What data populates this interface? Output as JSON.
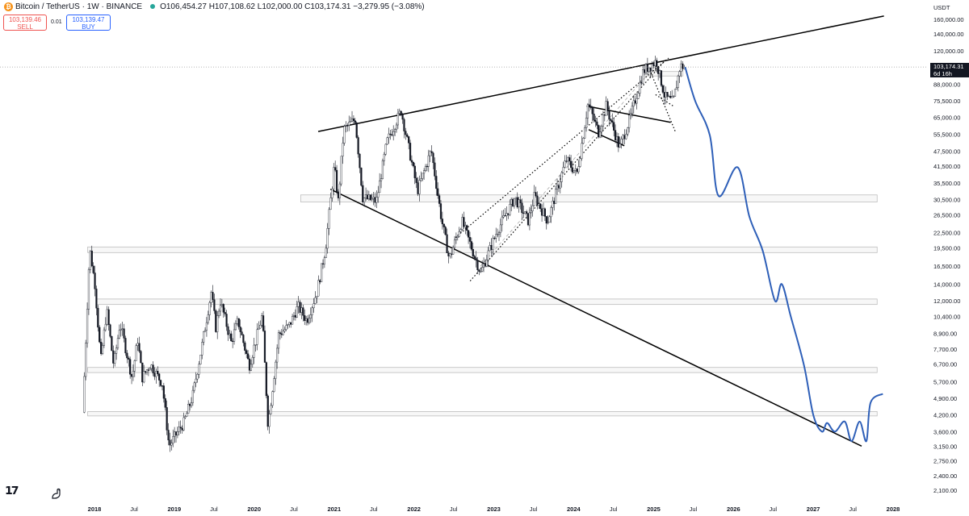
{
  "header": {
    "symbol": "Bitcoin / TetherUS · 1W · BINANCE",
    "open": "O106,454.27",
    "high": "H107,108.62",
    "low": "L102,000.00",
    "close": "C103,174.31",
    "change": "−3,279.95 (−3.08%)"
  },
  "trade": {
    "sell_price": "103,139.46",
    "sell_label": "SELL",
    "spread": "0.01",
    "buy_price": "103,139.47",
    "buy_label": "BUY"
  },
  "price_axis": {
    "currency": "USDT",
    "current_price": "103,174.31",
    "countdown": "6d 16h"
  },
  "colors": {
    "up_candle": "#ffffff",
    "down_candle": "#131722",
    "projection": "#2e5fb8",
    "trendline": "#000000",
    "zone_border": "#bdbdbd"
  },
  "chart_data": {
    "type": "candlestick",
    "title": "Bitcoin / TetherUS · 1W · BINANCE",
    "y_scale": "log",
    "ylim": [
      2000,
      175000
    ],
    "y_ticks": [
      160000,
      140000,
      120000,
      88000,
      75500,
      65000,
      55500,
      47500,
      41500,
      35500,
      30500,
      26500,
      22500,
      19500,
      16500,
      14000,
      12000,
      10400,
      8900,
      7700,
      6700,
      5700,
      4900,
      4200,
      3600,
      3150,
      2750,
      2400,
      2100
    ],
    "y_tick_labels": [
      "160,000.00",
      "140,000.00",
      "120,000.00",
      "88,000.00",
      "75,500.00",
      "65,000.00",
      "55,500.00",
      "47,500.00",
      "41,500.00",
      "35,500.00",
      "30,500.00",
      "26,500.00",
      "22,500.00",
      "19,500.00",
      "16,500.00",
      "14,000.00",
      "12,000.00",
      "10,400.00",
      "8,900.00",
      "7,700.00",
      "6,700.00",
      "5,700.00",
      "4,900.00",
      "4,200.00",
      "3,600.00",
      "3,150.00",
      "2,750.00",
      "2,400.00",
      "2,100.00"
    ],
    "x_ticks": [
      "2018",
      "Jul",
      "2019",
      "Jul",
      "2020",
      "Jul",
      "2021",
      "Jul",
      "2022",
      "Jul",
      "2023",
      "Jul",
      "2024",
      "Jul",
      "2025",
      "Jul",
      "2026",
      "Jul",
      "2027",
      "Jul",
      "2028"
    ],
    "x_tick_dates": [
      "2018-01-01",
      "2018-07-01",
      "2019-01-01",
      "2019-07-01",
      "2020-01-01",
      "2020-07-01",
      "2021-01-01",
      "2021-07-01",
      "2022-01-01",
      "2022-07-01",
      "2023-01-01",
      "2023-07-01",
      "2024-01-01",
      "2024-07-01",
      "2025-01-01",
      "2025-07-01",
      "2026-01-01",
      "2026-07-01",
      "2027-01-01",
      "2027-07-01",
      "2028-01-01"
    ],
    "price_path": [
      [
        "2017-11-15",
        4300
      ],
      [
        "2017-12-17",
        19500
      ],
      [
        "2018-01-10",
        14000
      ],
      [
        "2018-02-06",
        6900
      ],
      [
        "2018-03-05",
        11000
      ],
      [
        "2018-04-06",
        6600
      ],
      [
        "2018-05-05",
        9800
      ],
      [
        "2018-06-29",
        5900
      ],
      [
        "2018-07-25",
        8400
      ],
      [
        "2018-08-14",
        5900
      ],
      [
        "2018-09-20",
        6700
      ],
      [
        "2018-11-14",
        5600
      ],
      [
        "2018-12-15",
        3150
      ],
      [
        "2019-01-20",
        3550
      ],
      [
        "2019-02-20",
        3900
      ],
      [
        "2019-04-02",
        5000
      ],
      [
        "2019-05-15",
        8000
      ],
      [
        "2019-06-26",
        13000
      ],
      [
        "2019-07-17",
        9400
      ],
      [
        "2019-08-06",
        12000
      ],
      [
        "2019-09-25",
        8200
      ],
      [
        "2019-10-26",
        10000
      ],
      [
        "2019-12-17",
        6600
      ],
      [
        "2020-02-14",
        10500
      ],
      [
        "2020-03-12",
        3800
      ],
      [
        "2020-04-29",
        8800
      ],
      [
        "2020-06-15",
        9500
      ],
      [
        "2020-07-27",
        11400
      ],
      [
        "2020-09-05",
        10000
      ],
      [
        "2020-10-21",
        13000
      ],
      [
        "2020-11-30",
        19500
      ],
      [
        "2021-01-08",
        41500
      ],
      [
        "2021-01-27",
        30000
      ],
      [
        "2021-02-21",
        58000
      ],
      [
        "2021-04-14",
        64000
      ],
      [
        "2021-05-19",
        31000
      ],
      [
        "2021-07-20",
        30000
      ],
      [
        "2021-09-07",
        52000
      ],
      [
        "2021-11-10",
        69000
      ],
      [
        "2022-01-24",
        33000
      ],
      [
        "2022-03-28",
        48000
      ],
      [
        "2022-05-12",
        26000
      ],
      [
        "2022-06-18",
        17600
      ],
      [
        "2022-08-15",
        25000
      ],
      [
        "2022-11-09",
        15500
      ],
      [
        "2023-01-20",
        22500
      ],
      [
        "2023-04-14",
        31000
      ],
      [
        "2023-06-15",
        25000
      ],
      [
        "2023-07-13",
        31500
      ],
      [
        "2023-09-11",
        25000
      ],
      [
        "2023-12-05",
        44000
      ],
      [
        "2024-01-23",
        38500
      ],
      [
        "2024-03-14",
        73800
      ],
      [
        "2024-05-01",
        56500
      ],
      [
        "2024-06-05",
        72000
      ],
      [
        "2024-08-05",
        49000
      ],
      [
        "2024-09-27",
        66500
      ],
      [
        "2024-11-22",
        99500
      ],
      [
        "2025-01-20",
        109000
      ],
      [
        "2025-02-28",
        78500
      ],
      [
        "2025-04-07",
        74500
      ],
      [
        "2025-05-10",
        104500
      ],
      [
        "2025-05-25",
        103174
      ]
    ],
    "projection": [
      [
        "2025-05-25",
        103174
      ],
      [
        "2025-07-10",
        75500
      ],
      [
        "2025-09-15",
        55000
      ],
      [
        "2025-10-25",
        31500
      ],
      [
        "2026-01-20",
        41000
      ],
      [
        "2026-03-15",
        26000
      ],
      [
        "2026-05-15",
        19000
      ],
      [
        "2026-07-10",
        12000
      ],
      [
        "2026-08-10",
        14000
      ],
      [
        "2026-09-20",
        10400
      ],
      [
        "2026-11-20",
        6600
      ],
      [
        "2027-01-01",
        4200
      ],
      [
        "2027-02-10",
        3600
      ],
      [
        "2027-03-05",
        3900
      ],
      [
        "2027-04-10",
        3600
      ],
      [
        "2027-05-25",
        3950
      ],
      [
        "2027-06-25",
        3300
      ],
      [
        "2027-08-01",
        3950
      ],
      [
        "2027-09-01",
        3300
      ],
      [
        "2027-09-20",
        4700
      ],
      [
        "2027-11-15",
        5100
      ]
    ],
    "trendlines": [
      {
        "style": "solid",
        "from": [
          "2020-10-20",
          57000
        ],
        "to": [
          "2027-11-20",
          165000
        ]
      },
      {
        "style": "solid",
        "from": [
          "2020-12-15",
          33500
        ],
        "to": [
          "2027-08-10",
          3150
        ]
      },
      {
        "style": "dotted",
        "from": [
          "2022-09-15",
          14400
        ],
        "to": [
          "2025-02-20",
          109000
        ]
      },
      {
        "style": "dotted",
        "from": [
          "2022-07-10",
          21500
        ],
        "to": [
          "2025-03-10",
          112000
        ]
      },
      {
        "style": "dashed",
        "from": [
          "2022-11-01",
          16500
        ],
        "to": [
          "2025-01-15",
          106000
        ]
      },
      {
        "style": "solid",
        "from": [
          "2024-03-01",
          72000
        ],
        "to": [
          "2025-03-20",
          62000
        ]
      },
      {
        "style": "solid",
        "from": [
          "2024-03-10",
          58000
        ],
        "to": [
          "2024-08-20",
          50000
        ]
      },
      {
        "style": "dotted",
        "from": [
          "2024-12-15",
          100000
        ],
        "to": [
          "2025-04-10",
          57000
        ]
      },
      {
        "style": "dotted",
        "from": [
          "2025-01-10",
          80000
        ],
        "to": [
          "2025-04-01",
          72000
        ]
      }
    ],
    "zones": [
      {
        "from": "2020-08-01",
        "to": "2027-10-20",
        "low": 29800,
        "high": 31800
      },
      {
        "from": "2017-12-01",
        "to": "2027-10-20",
        "low": 18700,
        "high": 19700
      },
      {
        "from": "2018-01-10",
        "to": "2027-10-20",
        "low": 11600,
        "high": 12200
      },
      {
        "from": "2017-12-01",
        "to": "2027-10-20",
        "low": 6200,
        "high": 6500
      },
      {
        "from": "2017-12-01",
        "to": "2027-10-20",
        "low": 4160,
        "high": 4330
      },
      {
        "from": "2024-11-15",
        "to": "2025-05-15",
        "low": 95000,
        "high": 99000
      }
    ],
    "last_price": 103174.31
  }
}
